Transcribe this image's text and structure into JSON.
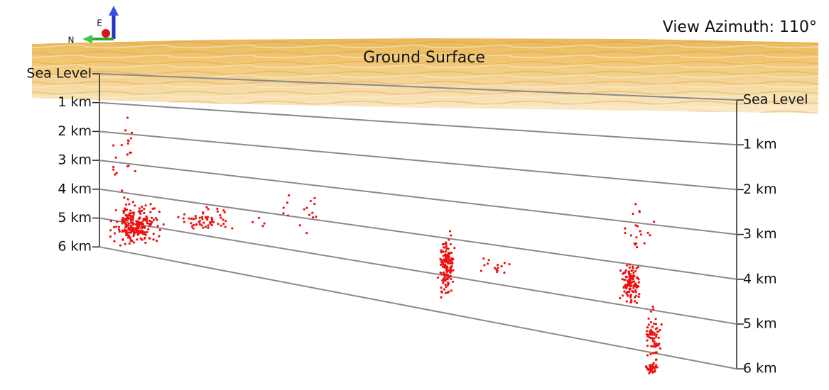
{
  "view_label": "View Azimuth: 110°",
  "surface_label": "Ground Surface",
  "compass": {
    "up": "E",
    "left": "N"
  },
  "left_axis": [
    "Sea Level",
    "1 km",
    "2 km",
    "3 km",
    "4 km",
    "5 km",
    "6 km"
  ],
  "right_axis": [
    "Sea Level",
    "1 km",
    "2 km",
    "3 km",
    "4 km",
    "5 km",
    "6 km"
  ]
}
